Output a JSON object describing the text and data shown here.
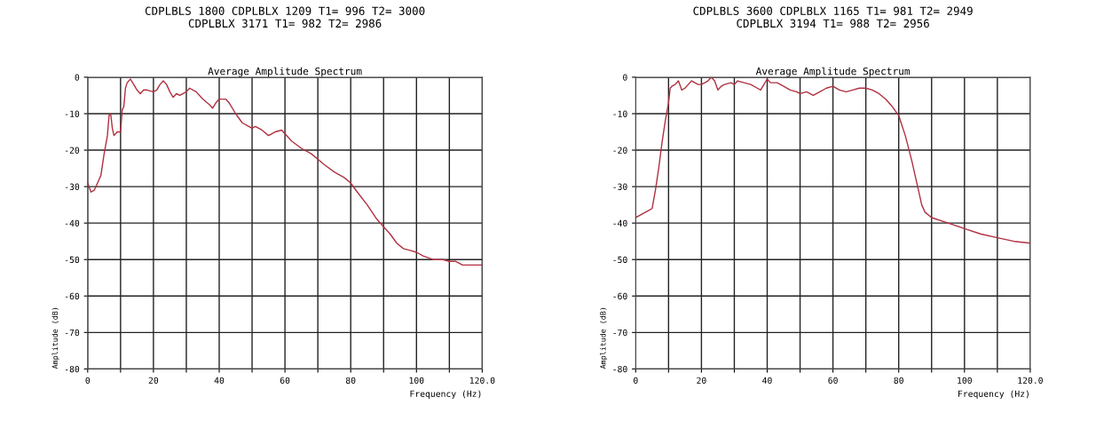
{
  "chart_data": [
    {
      "type": "line",
      "title": "CDPLBLS 1800 CDPLBLX 1209 T1= 996 T2= 3000\nCDPLBLX 3171 T1= 982 T2= 2986",
      "subtitle": "Average Amplitude Spectrum",
      "xlabel": "Frequency (Hz)",
      "ylabel": "Amplitude (dB)",
      "x": [
        0,
        1,
        2,
        3,
        4,
        5,
        6,
        6.5,
        7,
        7.5,
        8,
        9,
        10,
        10.5,
        11,
        11.5,
        12,
        13,
        14,
        15,
        16,
        17,
        18,
        20,
        21,
        22,
        23,
        24,
        25,
        26,
        27,
        28,
        30,
        31,
        33,
        35,
        37,
        38,
        39,
        40,
        42,
        43,
        45,
        47,
        49,
        50,
        51,
        53,
        55,
        57,
        59,
        60,
        62,
        65,
        68,
        70,
        72,
        75,
        78,
        80,
        82,
        85,
        88,
        90,
        92,
        94,
        96,
        98,
        100,
        102,
        105,
        108,
        110,
        112,
        114,
        116,
        118,
        120
      ],
      "series": [
        {
          "color": "#b03040",
          "values": [
            -29,
            -31.5,
            -31,
            -29,
            -27,
            -21,
            -16,
            -10.5,
            -10,
            -14,
            -16,
            -15,
            -15,
            -9,
            -8,
            -3,
            -1.5,
            -0.5,
            -2,
            -3.5,
            -4.5,
            -3.5,
            -3.5,
            -4,
            -3.5,
            -2,
            -1,
            -2,
            -4,
            -5.5,
            -4.5,
            -5,
            -4,
            -3,
            -4,
            -6,
            -7.5,
            -8.5,
            -7,
            -6,
            -6,
            -7,
            -10,
            -12.5,
            -13.5,
            -14,
            -13.5,
            -14.5,
            -16,
            -15,
            -14.5,
            -15.5,
            -17.5,
            -19.5,
            -21,
            -22.5,
            -24,
            -26,
            -27.5,
            -29,
            -31.5,
            -35,
            -39,
            -41,
            -43,
            -45.5,
            -47,
            -47.5,
            -48,
            -49,
            -50,
            -50,
            -50.5,
            -50.5,
            -51.5,
            -51.5,
            -51.5,
            -51.5
          ]
        }
      ],
      "xlim": [
        0,
        120
      ],
      "ylim": [
        -80,
        0
      ],
      "xticks": [
        0,
        {
          "value": 10,
          "label": null
        },
        20,
        {
          "value": 30,
          "label": null
        },
        40,
        {
          "value": 50,
          "label": null
        },
        60,
        {
          "value": 70,
          "label": null
        },
        80,
        {
          "value": 90,
          "label": null
        },
        100,
        {
          "value": 110,
          "label": null
        },
        {
          "value": 120,
          "label": "120.0"
        }
      ],
      "yticks": [
        -80,
        -70,
        -60,
        -50,
        -40,
        -30,
        -20,
        -10,
        0
      ],
      "grid": true,
      "line_style": "solid"
    },
    {
      "type": "line",
      "title": "CDPLBLS 3600 CDPLBLX 1165 T1= 981 T2= 2949\nCDPLBLX 3194 T1= 988 T2= 2956",
      "subtitle": "Average Amplitude Spectrum",
      "xlabel": "Frequency (Hz)",
      "ylabel": "Amplitude (dB)",
      "x": [
        0,
        2,
        4,
        5,
        6,
        7,
        8,
        9,
        10,
        10.5,
        11,
        12,
        13,
        14,
        15,
        16,
        17,
        18,
        19,
        20,
        22,
        23,
        24,
        25,
        26,
        27,
        29,
        30,
        31,
        33,
        35,
        37,
        38,
        39,
        40,
        41,
        43,
        45,
        47,
        49,
        50,
        52,
        54,
        56,
        58,
        60,
        62,
        64,
        66,
        68,
        70,
        72,
        74,
        76,
        78,
        80,
        82,
        84,
        86,
        87,
        88,
        90,
        95,
        100,
        105,
        110,
        115,
        120
      ],
      "series": [
        {
          "color": "#b03040",
          "values": [
            -38.5,
            -37.5,
            -36.5,
            -36,
            -31,
            -25,
            -18,
            -12,
            -7,
            -3,
            -2.5,
            -2,
            -1,
            -3.5,
            -3,
            -2,
            -1,
            -1.5,
            -2,
            -2,
            -1,
            0,
            -1,
            -3.5,
            -2.5,
            -2,
            -1.5,
            -2,
            -1,
            -1.5,
            -2,
            -3,
            -3.5,
            -2,
            -0.5,
            -1.5,
            -1.5,
            -2.5,
            -3.5,
            -4,
            -4.5,
            -4,
            -5,
            -4,
            -3,
            -2.5,
            -3.5,
            -4,
            -3.5,
            -3,
            -3,
            -3.5,
            -4.5,
            -6,
            -8,
            -10.5,
            -16,
            -23,
            -31,
            -35,
            -37,
            -38.5,
            -40,
            -41.5,
            -43,
            -44,
            -45,
            -45.5
          ]
        }
      ],
      "xlim": [
        0,
        120
      ],
      "ylim": [
        -80,
        0
      ],
      "xticks": [
        0,
        {
          "value": 10,
          "label": null
        },
        20,
        {
          "value": 30,
          "label": null
        },
        40,
        {
          "value": 50,
          "label": null
        },
        60,
        {
          "value": 70,
          "label": null
        },
        80,
        {
          "value": 90,
          "label": null
        },
        100,
        {
          "value": 110,
          "label": null
        },
        {
          "value": 120,
          "label": "120.0"
        }
      ],
      "yticks": [
        -80,
        -70,
        -60,
        -50,
        -40,
        -30,
        -20,
        -10,
        0
      ],
      "grid": true,
      "line_style": "solid"
    }
  ]
}
